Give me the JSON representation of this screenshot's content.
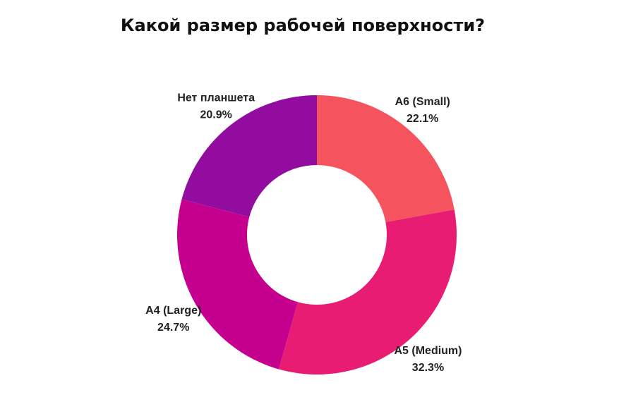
{
  "chart_data": {
    "type": "pie",
    "title": "Какой размер рабочей поверхности?",
    "donut": true,
    "slices": [
      {
        "label": "A6 (Small)",
        "value": 22.1,
        "value_label": "22.1%",
        "color": "#f5535e"
      },
      {
        "label": "A5 (Medium)",
        "value": 32.3,
        "value_label": "32.3%",
        "color": "#e81c73"
      },
      {
        "label": "A4 (Large)",
        "value": 24.7,
        "value_label": "24.7%",
        "color": "#c5008f"
      },
      {
        "label": "Нет планшета",
        "value": 20.9,
        "value_label": "20.9%",
        "color": "#920ca0"
      }
    ]
  }
}
